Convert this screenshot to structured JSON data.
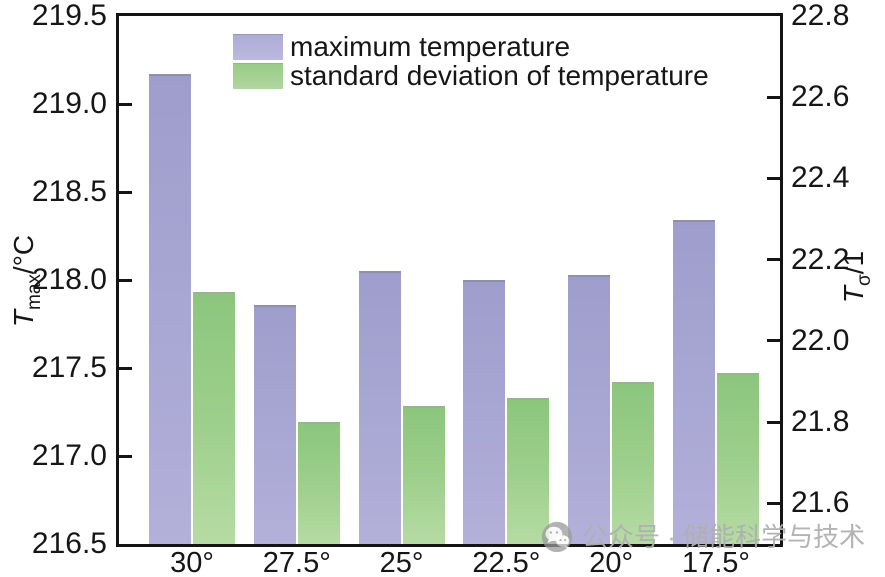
{
  "chart_data": {
    "type": "bar",
    "categories": [
      "30°",
      "27.5°",
      "25°",
      "22.5°",
      "20°",
      "17.5°"
    ],
    "series": [
      {
        "name": "maximum temperature",
        "axis": "left",
        "color": "#a6a4d1",
        "values": [
          219.17,
          217.86,
          218.05,
          218.0,
          218.03,
          218.34
        ]
      },
      {
        "name": "standard deviation of temperature",
        "axis": "right",
        "color": "#9ccf8b",
        "values": [
          22.12,
          21.8,
          21.84,
          21.86,
          21.9,
          21.92
        ]
      }
    ],
    "title": "",
    "xlabel": "",
    "grid": false,
    "legend_position": "top-inside",
    "left_axis": {
      "label": "T_max/°C",
      "ylim": [
        216.5,
        219.5
      ],
      "ticks": [
        219.5,
        219.0,
        218.5,
        218.0,
        217.5,
        217.0,
        216.5
      ]
    },
    "right_axis": {
      "label": "T_σ/1",
      "ylim": [
        21.5,
        22.8
      ],
      "ticks": [
        22.8,
        22.6,
        22.4,
        22.2,
        22.0,
        21.8,
        21.6
      ]
    }
  },
  "axes": {
    "left": {
      "label_var": "T",
      "label_sub": "max",
      "label_unit": "/°C",
      "tick_labels": [
        "219.5",
        "219.0",
        "218.5",
        "218.0",
        "217.5",
        "217.0",
        "216.5"
      ]
    },
    "right": {
      "label_var": "T",
      "label_sub": "σ",
      "label_unit": "/1",
      "tick_labels": [
        "22.8",
        "22.6",
        "22.4",
        "22.2",
        "22.0",
        "21.8",
        "21.6"
      ]
    },
    "x": {
      "tick_labels": [
        "30°",
        "27.5°",
        "25°",
        "22.5°",
        "20°",
        "17.5°"
      ]
    }
  },
  "legend": {
    "items": [
      {
        "label": "maximum temperature",
        "swatch": "purple"
      },
      {
        "label": "standard deviation of temperature",
        "swatch": "green"
      }
    ]
  },
  "watermark": {
    "icon": "wechat-icon",
    "text": "公众号 · 储能科学与技术",
    "color": "#afafaf"
  },
  "colors": {
    "axis": "#141414",
    "bar_purple": "#a6a4d1",
    "bar_green": "#9ccf8b",
    "background": "#ffffff"
  }
}
